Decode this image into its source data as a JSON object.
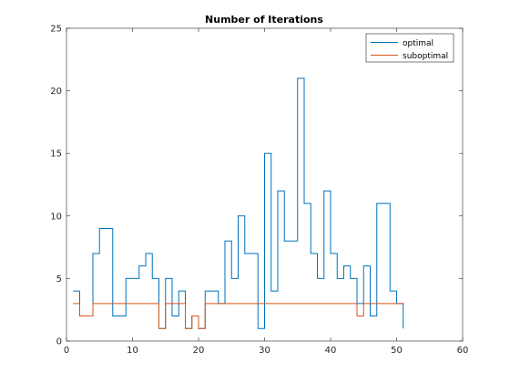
{
  "chart_data": {
    "type": "line",
    "style": "stairs",
    "title": "Number of Iterations",
    "xlabel": "",
    "ylabel": "",
    "xlim": [
      0,
      60
    ],
    "ylim": [
      0,
      25
    ],
    "xticks": [
      0,
      10,
      20,
      30,
      40,
      50,
      60
    ],
    "yticks": [
      0,
      5,
      10,
      15,
      20,
      25
    ],
    "grid": false,
    "legend_position": "top-right",
    "series": [
      {
        "name": "optimal",
        "color": "#0072BD",
        "x": [
          1,
          2,
          3,
          4,
          5,
          6,
          7,
          8,
          9,
          10,
          11,
          12,
          13,
          14,
          15,
          16,
          17,
          18,
          19,
          20,
          21,
          22,
          23,
          24,
          25,
          26,
          27,
          28,
          29,
          30,
          31,
          32,
          33,
          34,
          35,
          36,
          37,
          38,
          39,
          40,
          41,
          42,
          43,
          44,
          45,
          46,
          47,
          48,
          49,
          50,
          51
        ],
        "values": [
          4,
          2,
          2,
          7,
          9,
          9,
          2,
          2,
          5,
          5,
          6,
          7,
          5,
          1,
          5,
          2,
          4,
          1,
          2,
          1,
          4,
          4,
          3,
          8,
          5,
          10,
          7,
          7,
          1,
          15,
          4,
          12,
          8,
          8,
          21,
          11,
          7,
          5,
          12,
          7,
          5,
          6,
          5,
          3,
          6,
          2,
          11,
          11,
          4,
          3,
          1
        ]
      },
      {
        "name": "suboptimal",
        "color": "#D95319",
        "x": [
          1,
          2,
          3,
          4,
          5,
          6,
          7,
          8,
          9,
          10,
          11,
          12,
          13,
          14,
          15,
          16,
          17,
          18,
          19,
          20,
          21,
          22,
          23,
          24,
          25,
          26,
          27,
          28,
          29,
          30,
          31,
          32,
          33,
          34,
          35,
          36,
          37,
          38,
          39,
          40,
          41,
          42,
          43,
          44,
          45,
          46,
          47,
          48,
          49,
          50,
          51
        ],
        "values": [
          3,
          2,
          2,
          3,
          3,
          3,
          3,
          3,
          3,
          3,
          3,
          3,
          3,
          1,
          3,
          3,
          3,
          1,
          2,
          1,
          3,
          3,
          3,
          3,
          3,
          3,
          3,
          3,
          3,
          3,
          3,
          3,
          3,
          3,
          3,
          3,
          3,
          3,
          3,
          3,
          3,
          3,
          3,
          2,
          3,
          3,
          3,
          3,
          3,
          3,
          3
        ]
      }
    ]
  }
}
